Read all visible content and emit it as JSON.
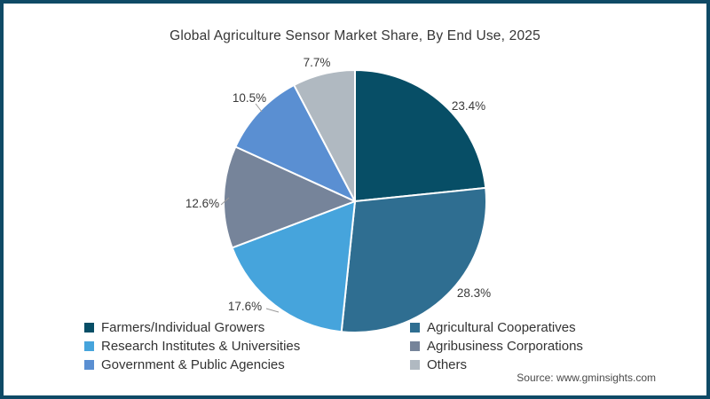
{
  "frame": {
    "border_color": "#0f4a66",
    "background": "#ffffff"
  },
  "chart_data": {
    "type": "pie",
    "title": "Global Agriculture Sensor Market Share, By End Use, 2025",
    "unit": "%",
    "start_angle_deg": 0,
    "direction": "clockwise",
    "legend_position": "bottom",
    "slices": [
      {
        "label": "Farmers/Individual Growers",
        "value": 23.4,
        "display": "23.4%",
        "color": "#074e66"
      },
      {
        "label": "Agricultural Cooperatives",
        "value": 28.3,
        "display": "28.3%",
        "color": "#2f6e91"
      },
      {
        "label": "Research Institutes & Universities",
        "value": 17.6,
        "display": "17.6%",
        "color": "#46a4dc"
      },
      {
        "label": "Agribusiness Corporations",
        "value": 12.6,
        "display": "12.6%",
        "color": "#76849a"
      },
      {
        "label": "Government & Public Agencies",
        "value": 10.5,
        "display": "10.5%",
        "color": "#5a8fd2"
      },
      {
        "label": "Others",
        "value": 7.7,
        "display": "7.7%",
        "color": "#b0b9c1"
      }
    ]
  },
  "source": {
    "text": "Source: www.gminsights.com"
  }
}
